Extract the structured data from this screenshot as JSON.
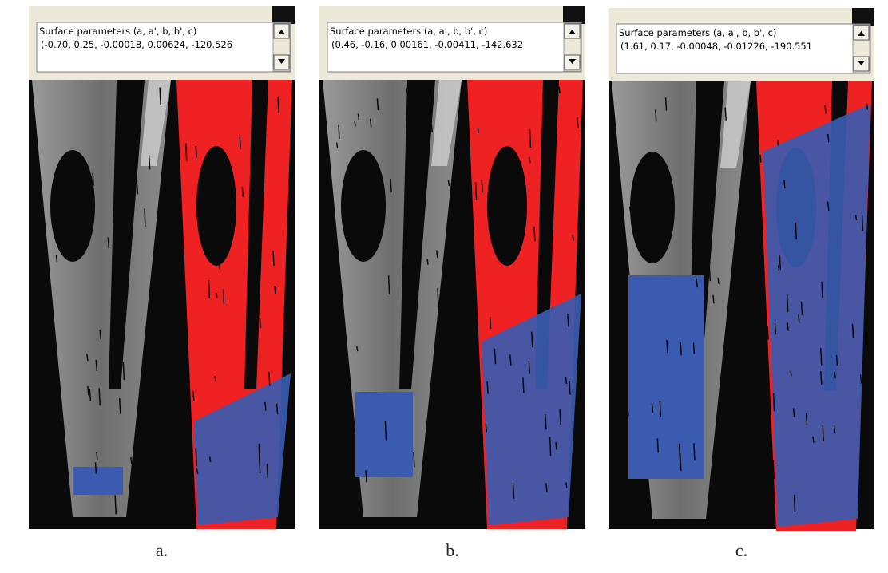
{
  "panels": [
    {
      "header": "Surface parameters (a, a', b, b', c)",
      "values": "(-0.70, 0.25, -0.00018, 0.00624, -120.526",
      "caption": "a."
    },
    {
      "header": "Surface parameters (a, a', b, b', c)",
      "values": "(0.46, -0.16, 0.00161, -0.00411, -142.632",
      "caption": "b."
    },
    {
      "header": "Surface parameters (a, a', b, b', c)",
      "values": "(1.61, 0.17, -0.00048, -0.01226, -190.551",
      "caption": "c."
    }
  ]
}
